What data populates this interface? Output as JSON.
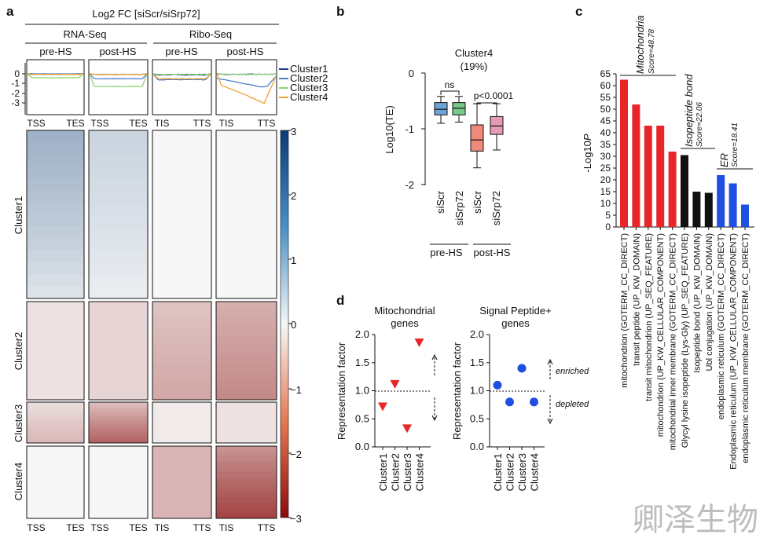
{
  "colors": {
    "cluster1": "#1f3a93",
    "cluster2": "#4a7ec9",
    "cluster3": "#8fd46f",
    "cluster4": "#f0a030",
    "red": "#e8262a",
    "black": "#111111",
    "blue": "#1f4fe0",
    "boxBlue": "#6fa3d8",
    "boxGreen": "#79c98a",
    "boxSalmon": "#f08a7a",
    "boxPink": "#e59ab8"
  },
  "panel_a": {
    "letter": "a",
    "main_title": "Log2 FC [siScr/siSrp72]",
    "group_labels": [
      "RNA-Seq",
      "Ribo-Seq"
    ],
    "sub_labels": [
      "pre-HS",
      "post-HS",
      "pre-HS",
      "post-HS"
    ],
    "legend": [
      "Cluster1",
      "Cluster2",
      "Cluster3",
      "Cluster4"
    ],
    "profile_yticks": [
      "0",
      "-1",
      "-2",
      "-3"
    ],
    "profile_xlabels": [
      [
        "TSS",
        "TES"
      ],
      [
        "TSS",
        "TES"
      ],
      [
        "TIS",
        "TTS"
      ],
      [
        "TIS",
        "TTS"
      ]
    ],
    "bottom_xlabels": [
      [
        "TSS",
        "TES"
      ],
      [
        "TSS",
        "TES"
      ],
      [
        "TIS",
        "TTS"
      ],
      [
        "TIS",
        "TTS"
      ]
    ],
    "cluster_labels": [
      "Cluster1",
      "Cluster2",
      "Cluster3",
      "Cluster4"
    ],
    "colorbar_ticks": [
      "3",
      "2",
      "1",
      "0",
      "−1",
      "−2",
      "−3"
    ],
    "mean_profiles": {
      "columns": [
        "RNA-Seq pre-HS",
        "RNA-Seq post-HS",
        "Ribo-Seq pre-HS",
        "Ribo-Seq post-HS"
      ],
      "cluster1": [
        -0.05,
        -0.05,
        -0.1,
        -0.05
      ],
      "cluster2": [
        0.0,
        -0.5,
        -0.6,
        -1.3
      ],
      "cluster3": [
        -0.4,
        -1.3,
        -0.05,
        -0.05
      ],
      "cluster4": [
        -0.05,
        -0.05,
        -0.5,
        -3.0
      ]
    },
    "heatmap_mean_log2fc": {
      "cluster1": [
        0.4,
        0.15,
        0.0,
        0.0
      ],
      "cluster2": [
        -0.1,
        -0.2,
        -0.5,
        -0.8
      ],
      "cluster3": [
        -0.3,
        -1.0,
        -0.05,
        -0.1
      ],
      "cluster4": [
        0.0,
        0.0,
        -0.5,
        -1.5
      ]
    }
  },
  "panel_b": {
    "letter": "b",
    "title": "Cluster4",
    "subtitle": "(19%)",
    "ylabel": "Log10(TE)",
    "yticks": [
      "0",
      "-1",
      "-2"
    ],
    "group_labels": [
      "pre-HS",
      "post-HS"
    ],
    "ns_label": "ns",
    "p_label": "p<0.0001",
    "xtick_labels": [
      "siScr",
      "siSrp72",
      "siScr",
      "siSrp72"
    ]
  },
  "panel_c": {
    "letter": "c",
    "ylabel_prefix": "-Log10",
    "ylabel_italic": "P",
    "yticks": [
      "0",
      "5",
      "10",
      "15",
      "20",
      "25",
      "30",
      "35",
      "40",
      "45",
      "50",
      "55",
      "60",
      "65"
    ],
    "groups": [
      {
        "name": "Mitochondria",
        "score": "Score=48.78"
      },
      {
        "name": "Isopeptide bond",
        "score": "Score=22.06"
      },
      {
        "name": "ER",
        "score": "Score=18.41"
      }
    ],
    "terms": [
      "mitochondrion (GOTERM_CC_DIRECT)",
      "transit peptide (UP_KW_DOMAIN)",
      "transit mitochondrion (UP_SEQ_FEATURE)",
      "mitochondrion (UP_KW_CELLULAR_COMPONENT)",
      "mitochondrial inner membrane (GOTERM_CC_DIRECT)",
      "Glycyl lysine isopeptide (Lys-Gly) (UP_SEQ_FEATURE)",
      "Isopeptide bond (UP_KW_DOMAIN)",
      "Ubl conjugation (UP_KW_DOMAIN)",
      "endoplasmic reticulum (GOTERM_CC_DIRECT)",
      "Endoplasmic reticulum (UP_KW_CELLULAR_COMPONENT)",
      "endoplasmic reticulum membrane (GOTERM_CC_DIRECT)"
    ]
  },
  "panel_d": {
    "letter": "d",
    "left_title": [
      "Mitochondrial",
      "genes"
    ],
    "right_title": [
      "Signal Peptide+",
      "genes"
    ],
    "ylabel": "Representation factor",
    "yticks": [
      "0.0",
      "0.5",
      "1.0",
      "1.5",
      "2.0"
    ],
    "clusters": [
      "Cluster1",
      "Cluster2",
      "Cluster3",
      "Cluster4"
    ],
    "enriched_label": "enriched",
    "depleted_label": "depleted"
  },
  "chart_data": [
    {
      "id": "a_profiles",
      "type": "line",
      "title": "Log2 FC [siScr/siSrp72]",
      "ylim": [
        -3.3,
        0.5
      ],
      "panels": [
        "RNA-Seq pre-HS",
        "RNA-Seq post-HS",
        "Ribo-Seq pre-HS",
        "Ribo-Seq post-HS"
      ],
      "series": [
        {
          "name": "Cluster1",
          "values": [
            -0.05,
            -0.05,
            -0.1,
            -0.05
          ]
        },
        {
          "name": "Cluster2",
          "values": [
            0.0,
            -0.5,
            -0.6,
            -1.3
          ]
        },
        {
          "name": "Cluster3",
          "values": [
            -0.4,
            -1.3,
            -0.05,
            -0.05
          ]
        },
        {
          "name": "Cluster4",
          "values": [
            -0.05,
            -0.05,
            -0.5,
            -3.0
          ]
        }
      ]
    },
    {
      "id": "b_box",
      "type": "box",
      "title": "Cluster4 (19%)",
      "ylabel": "Log10(TE)",
      "ylim": [
        -2,
        0
      ],
      "categories": [
        "pre-HS siScr",
        "pre-HS siSrp72",
        "post-HS siScr",
        "post-HS siSrp72"
      ],
      "boxes": [
        {
          "whisker_low": -0.9,
          "q1": -0.75,
          "median": -0.65,
          "q3": -0.53,
          "whisker_high": -0.42
        },
        {
          "whisker_low": -0.88,
          "q1": -0.75,
          "median": -0.63,
          "q3": -0.53,
          "whisker_high": -0.42
        },
        {
          "whisker_low": -1.7,
          "q1": -1.4,
          "median": -1.2,
          "q3": -0.93,
          "whisker_high": -0.55
        },
        {
          "whisker_low": -1.38,
          "q1": -1.1,
          "median": -0.95,
          "q3": -0.78,
          "whisker_high": -0.55
        }
      ]
    },
    {
      "id": "c_bars",
      "type": "bar",
      "ylabel": "-Log10P",
      "ylim": [
        0,
        65
      ],
      "categories": [
        "mitochondrion (GOTERM_CC_DIRECT)",
        "transit peptide (UP_KW_DOMAIN)",
        "transit mitochondrion (UP_SEQ_FEATURE)",
        "mitochondrion (UP_KW_CELLULAR_COMPONENT)",
        "mitochondrial inner membrane (GOTERM_CC_DIRECT)",
        "Glycyl lysine isopeptide (Lys-Gly) (UP_SEQ_FEATURE)",
        "Isopeptide bond (UP_KW_DOMAIN)",
        "Ubl conjugation (UP_KW_DOMAIN)",
        "endoplasmic reticulum (GOTERM_CC_DIRECT)",
        "Endoplasmic reticulum (UP_KW_CELLULAR_COMPONENT)",
        "endoplasmic reticulum membrane (GOTERM_CC_DIRECT)"
      ],
      "values": [
        62.5,
        52,
        43,
        43,
        32,
        30.5,
        15,
        14.5,
        22,
        18.5,
        9.5
      ],
      "groups": [
        "Mitochondria",
        "Mitochondria",
        "Mitochondria",
        "Mitochondria",
        "Mitochondria",
        "Isopeptide bond",
        "Isopeptide bond",
        "Isopeptide bond",
        "ER",
        "ER",
        "ER"
      ]
    },
    {
      "id": "d_mito",
      "type": "scatter",
      "title": "Mitochondrial genes",
      "ylabel": "Representation factor",
      "ylim": [
        0,
        2
      ],
      "reference_line": 1.0,
      "categories": [
        "Cluster1",
        "Cluster2",
        "Cluster3",
        "Cluster4"
      ],
      "values": [
        0.72,
        1.12,
        0.33,
        1.86
      ]
    },
    {
      "id": "d_signal",
      "type": "scatter",
      "title": "Signal Peptide+ genes",
      "ylabel": "Representation factor",
      "ylim": [
        0,
        2
      ],
      "reference_line": 1.0,
      "categories": [
        "Cluster1",
        "Cluster2",
        "Cluster3",
        "Cluster4"
      ],
      "values": [
        1.1,
        0.8,
        1.4,
        0.8
      ]
    }
  ],
  "watermark": "卿泽生物"
}
